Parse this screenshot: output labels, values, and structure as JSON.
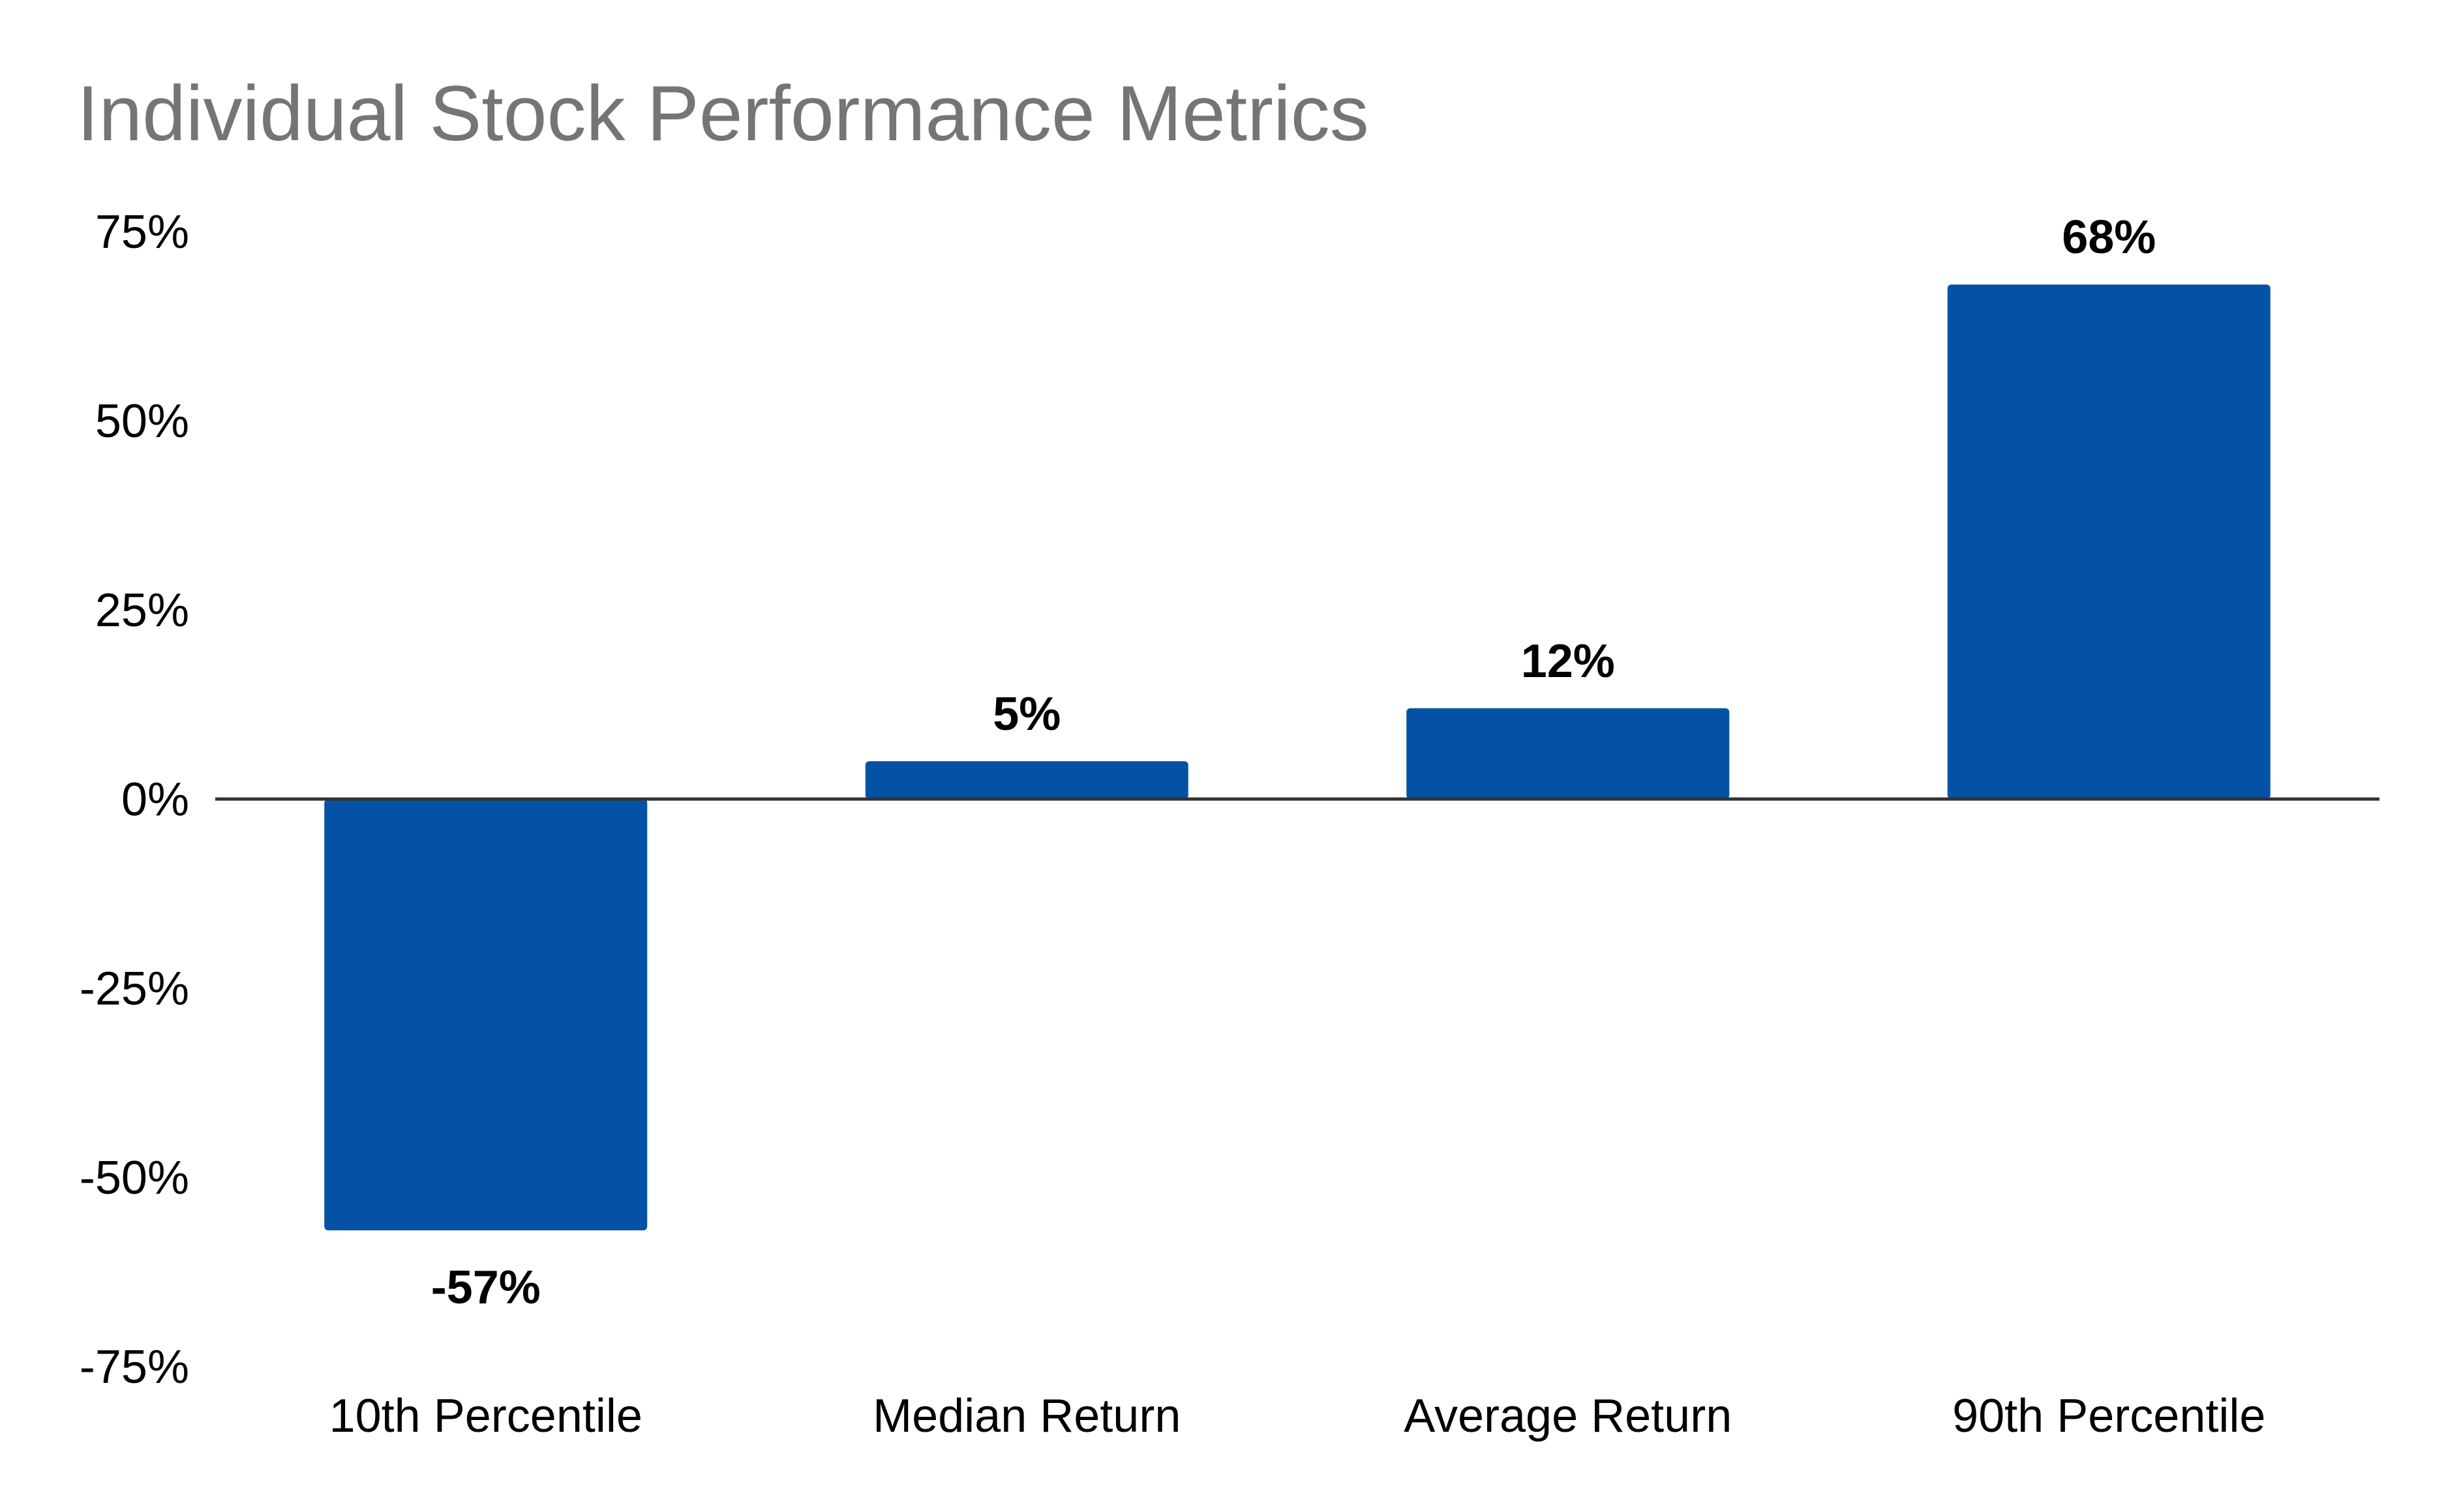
{
  "chart_data": {
    "type": "bar",
    "title": "Individual Stock Performance Metrics",
    "categories": [
      "10th Percentile",
      "Median Return",
      "Average Return",
      "90th Percentile"
    ],
    "values": [
      -57,
      5,
      12,
      68
    ],
    "data_labels": [
      "-57%",
      "5%",
      "12%",
      "68%"
    ],
    "ylim": [
      -75,
      75
    ],
    "yticks": [
      75,
      50,
      25,
      0,
      -25,
      -50,
      -75
    ],
    "ytick_labels": [
      "75%",
      "50%",
      "25%",
      "0%",
      "-25%",
      "-50%",
      "-75%"
    ],
    "xlabel": "",
    "ylabel": "",
    "grid": false,
    "legend": "none",
    "bar_color": "#0352A5",
    "zero_line_color": "#333333",
    "title_color": "#757575"
  }
}
